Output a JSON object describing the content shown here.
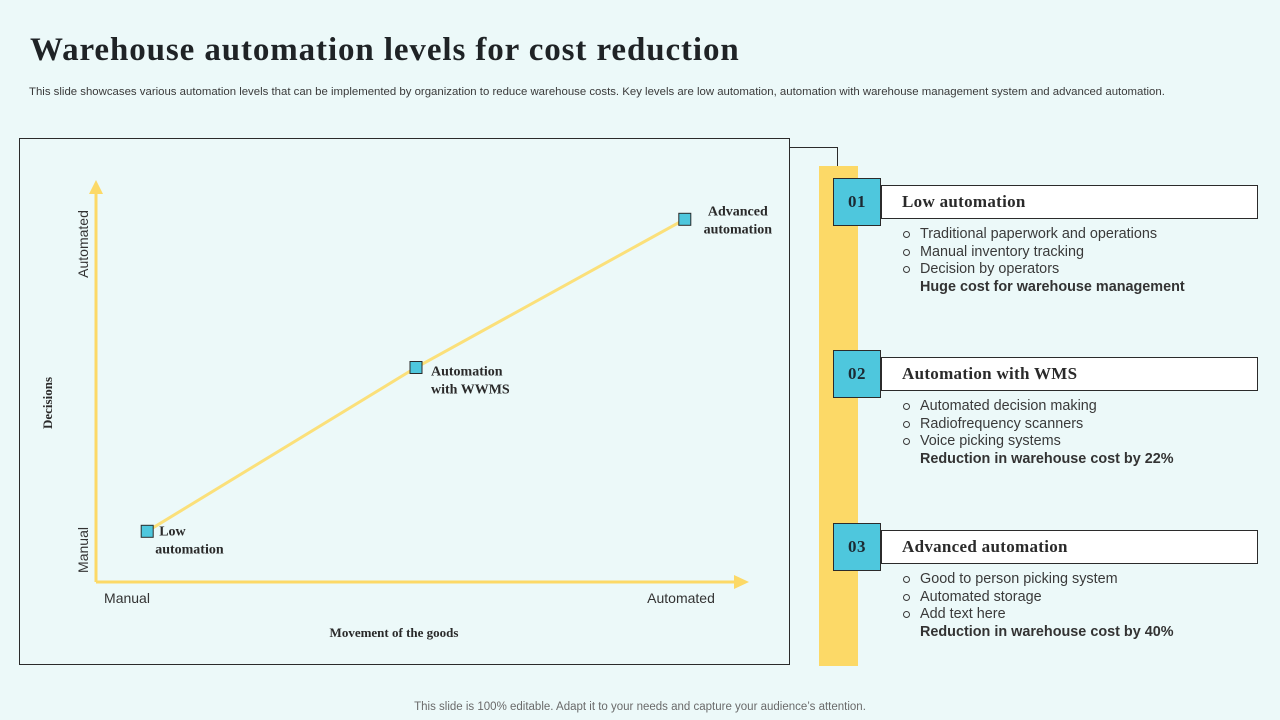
{
  "header": {
    "title": "Warehouse automation levels for cost reduction",
    "subtitle": "This slide showcases various automation levels that can be implemented by organization to reduce warehouse costs. Key levels are low automation, automation with warehouse management system and advanced automation."
  },
  "colors": {
    "background": "#ecf9f9",
    "accent_yellow": "#fcd967",
    "accent_cyan": "#4ec7dd",
    "line_yellow": "#fbe07a"
  },
  "chart_data": {
    "type": "line",
    "xlabel": "Movement of the goods",
    "ylabel": "Decisions",
    "x_ticks": [
      "Manual",
      "Automated"
    ],
    "y_ticks": [
      "Manual",
      "Automated"
    ],
    "xlim": [
      0,
      10
    ],
    "ylim": [
      0,
      10
    ],
    "points": [
      {
        "label_line1": "Low",
        "label_line2": "automation",
        "x": 0.8,
        "y": 1.3
      },
      {
        "label_line1": "Automation",
        "label_line2": "with WWMS",
        "x": 5.0,
        "y": 5.5
      },
      {
        "label_line1": "Advanced",
        "label_line2": "automation",
        "x": 9.2,
        "y": 9.3
      }
    ]
  },
  "levels": [
    {
      "number": "01",
      "title": "Low automation",
      "bullets": [
        "Traditional paperwork and operations",
        "Manual inventory tracking",
        "Decision by operators"
      ],
      "summary": "Huge cost for warehouse management"
    },
    {
      "number": "02",
      "title": "Automation with WMS",
      "bullets": [
        "Automated decision making",
        "Radiofrequency scanners",
        "Voice picking systems"
      ],
      "summary": "Reduction in warehouse cost by 22%"
    },
    {
      "number": "03",
      "title": "Advanced automation",
      "bullets": [
        "Good to person picking system",
        "Automated storage",
        "Add text here"
      ],
      "summary": "Reduction in warehouse cost by 40%"
    }
  ],
  "footer": "This slide is 100% editable. Adapt it to your needs and capture your audience’s attention."
}
